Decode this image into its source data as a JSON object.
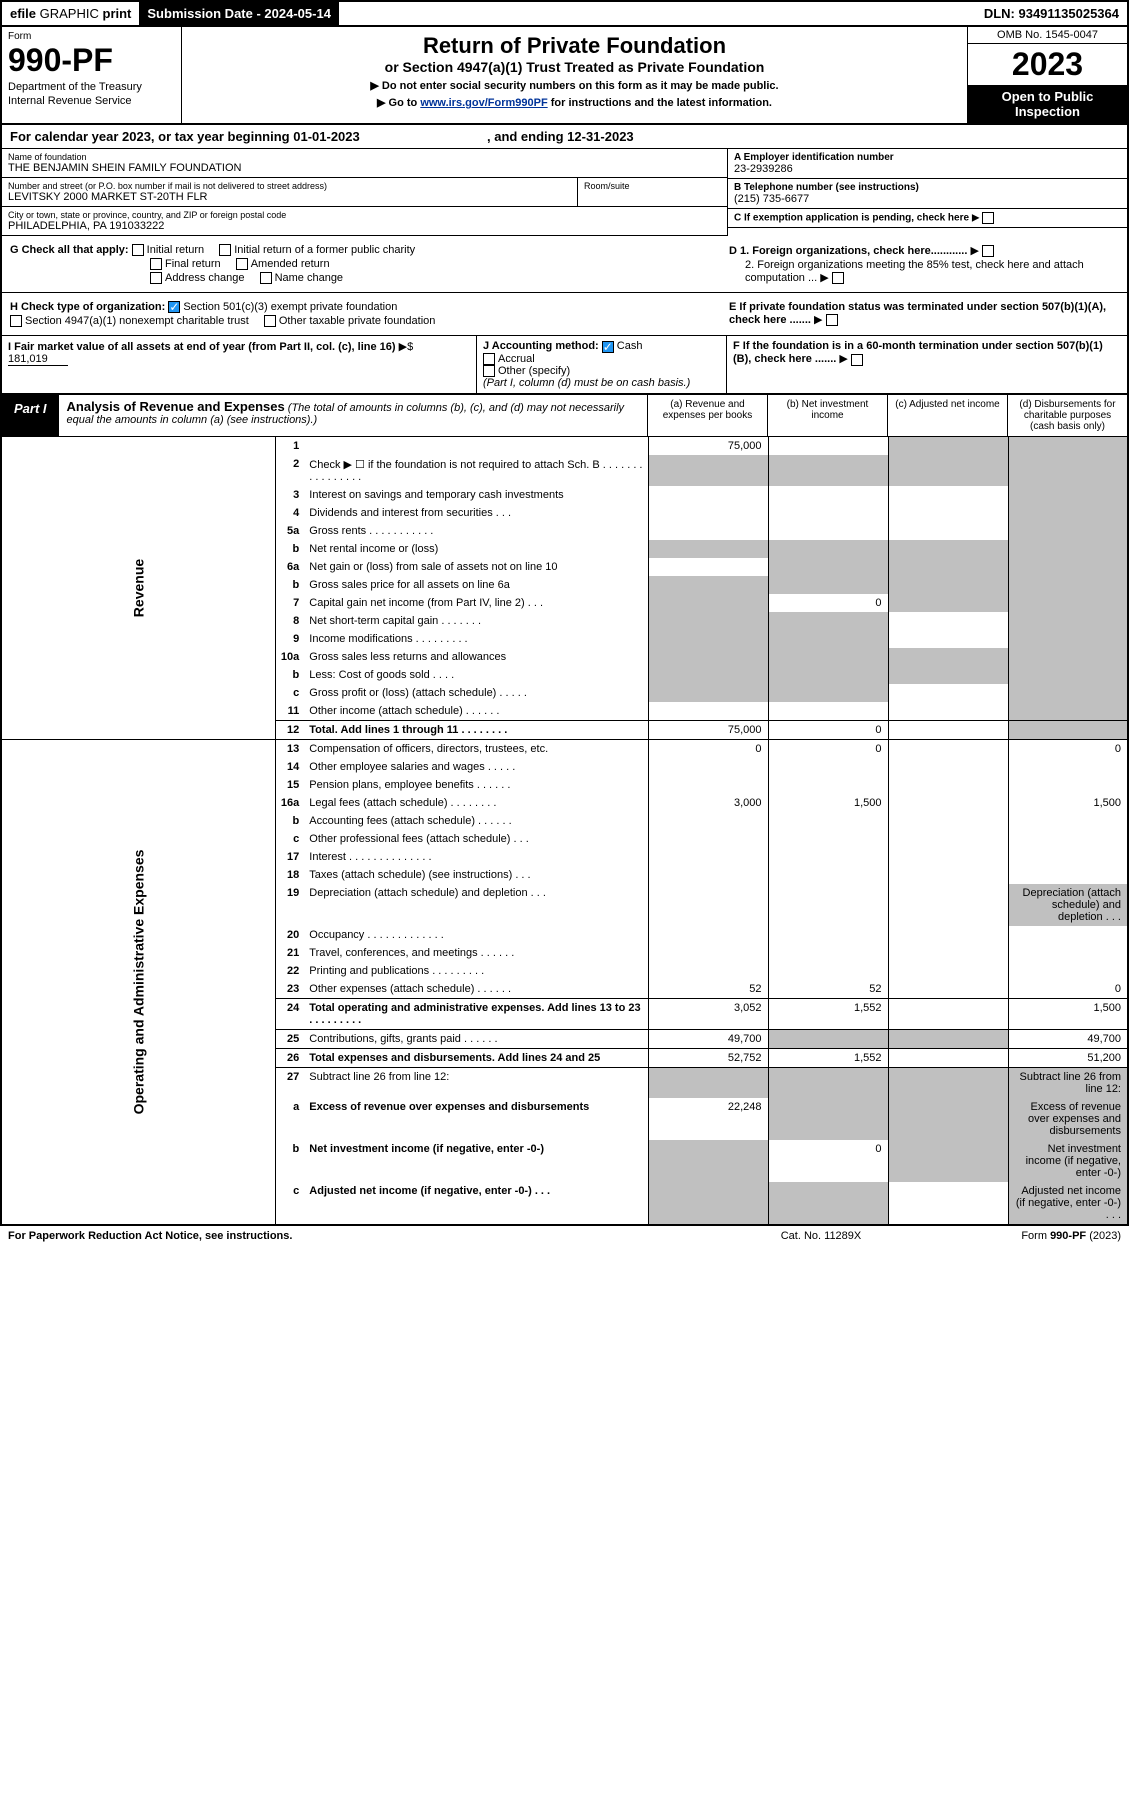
{
  "top": {
    "efile": "efile",
    "graphic": "GRAPHIC",
    "print": "print",
    "sub_label": "Submission Date - ",
    "sub_date": "2024-05-14",
    "dln_label": "DLN: ",
    "dln": "93491135025364"
  },
  "header": {
    "form_word": "Form",
    "form_num": "990-PF",
    "dept": "Department of the Treasury",
    "irs": "Internal Revenue Service",
    "title": "Return of Private Foundation",
    "subtitle": "or Section 4947(a)(1) Trust Treated as Private Foundation",
    "note1": "▶ Do not enter social security numbers on this form as it may be made public.",
    "note2_pre": "▶ Go to ",
    "note2_link": "www.irs.gov/Form990PF",
    "note2_post": " for instructions and the latest information.",
    "omb": "OMB No. 1545-0047",
    "year": "2023",
    "open": "Open to Public Inspection"
  },
  "cal": {
    "text_pre": "For calendar year 2023, or tax year beginning ",
    "begin": "01-01-2023",
    "text_mid": ", and ending ",
    "end": "12-31-2023"
  },
  "info": {
    "name_label": "Name of foundation",
    "name": "THE BENJAMIN SHEIN FAMILY FOUNDATION",
    "addr_label": "Number and street (or P.O. box number if mail is not delivered to street address)",
    "addr": "LEVITSKY 2000 MARKET ST-20TH FLR",
    "room_label": "Room/suite",
    "city_label": "City or town, state or province, country, and ZIP or foreign postal code",
    "city": "PHILADELPHIA, PA 191033222",
    "a_label": "A Employer identification number",
    "a_val": "23-2939286",
    "b_label": "B Telephone number (see instructions)",
    "b_val": "(215) 735-6677",
    "c_label": "C If exemption application is pending, check here",
    "d1": "D 1. Foreign organizations, check here............",
    "d2": "2. Foreign organizations meeting the 85% test, check here and attach computation ...",
    "e": "E If private foundation status was terminated under section 507(b)(1)(A), check here .......",
    "f": "F If the foundation is in a 60-month termination under section 507(b)(1)(B), check here .......",
    "g_label": "G Check all that apply:",
    "g_initial": "Initial return",
    "g_initial_former": "Initial return of a former public charity",
    "g_final": "Final return",
    "g_amended": "Amended return",
    "g_address": "Address change",
    "g_name": "Name change",
    "h_label": "H Check type of organization:",
    "h_501c3": "Section 501(c)(3) exempt private foundation",
    "h_4947": "Section 4947(a)(1) nonexempt charitable trust",
    "h_other": "Other taxable private foundation",
    "i_label": "I Fair market value of all assets at end of year (from Part II, col. (c), line 16)",
    "i_val": "181,019",
    "j_label": "J Accounting method:",
    "j_cash": "Cash",
    "j_accrual": "Accrual",
    "j_other": "Other (specify)",
    "j_note": "(Part I, column (d) must be on cash basis.)"
  },
  "part1": {
    "label": "Part I",
    "title": "Analysis of Revenue and Expenses",
    "title_note": "(The total of amounts in columns (b), (c), and (d) may not necessarily equal the amounts in column (a) (see instructions).)",
    "col_a": "(a) Revenue and expenses per books",
    "col_b": "(b) Net investment income",
    "col_c": "(c) Adjusted net income",
    "col_d": "(d) Disbursements for charitable purposes (cash basis only)",
    "side_rev": "Revenue",
    "side_exp": "Operating and Administrative Expenses"
  },
  "rows": [
    {
      "n": "1",
      "d": "",
      "a": "75,000",
      "b": "",
      "c": "",
      "cg": true,
      "dg": true
    },
    {
      "n": "2",
      "d": "Check ▶ ☐ if the foundation is not required to attach Sch. B   .  .  .  .  .  .  .  .  .  .  .  .  .  .  .  .",
      "ag": true,
      "bg": true,
      "cg": true,
      "dg": true
    },
    {
      "n": "3",
      "d": "Interest on savings and temporary cash investments",
      "a": "",
      "b": "",
      "c": "",
      "dg": true
    },
    {
      "n": "4",
      "d": "Dividends and interest from securities   .  .  .",
      "a": "",
      "b": "",
      "c": "",
      "dg": true
    },
    {
      "n": "5a",
      "d": "Gross rents   .  .  .  .  .  .  .  .  .  .  .",
      "a": "",
      "b": "",
      "c": "",
      "dg": true
    },
    {
      "n": "b",
      "d": "Net rental income or (loss)",
      "ag": true,
      "bg": true,
      "cg": true,
      "dg": true
    },
    {
      "n": "6a",
      "d": "Net gain or (loss) from sale of assets not on line 10",
      "a": "",
      "bg": true,
      "cg": true,
      "dg": true
    },
    {
      "n": "b",
      "d": "Gross sales price for all assets on line 6a",
      "ag": true,
      "bg": true,
      "cg": true,
      "dg": true
    },
    {
      "n": "7",
      "d": "Capital gain net income (from Part IV, line 2)   .  .  .",
      "ag": true,
      "b": "0",
      "cg": true,
      "dg": true
    },
    {
      "n": "8",
      "d": "Net short-term capital gain   .  .  .  .  .  .  .",
      "ag": true,
      "bg": true,
      "c": "",
      "dg": true
    },
    {
      "n": "9",
      "d": "Income modifications   .  .  .  .  .  .  .  .  .",
      "ag": true,
      "bg": true,
      "c": "",
      "dg": true
    },
    {
      "n": "10a",
      "d": "Gross sales less returns and allowances",
      "ag": true,
      "bg": true,
      "cg": true,
      "dg": true
    },
    {
      "n": "b",
      "d": "Less: Cost of goods sold   .  .  .  .",
      "ag": true,
      "bg": true,
      "cg": true,
      "dg": true
    },
    {
      "n": "c",
      "d": "Gross profit or (loss) (attach schedule)   .  .  .  .  .",
      "ag": true,
      "bg": true,
      "c": "",
      "dg": true
    },
    {
      "n": "11",
      "d": "Other income (attach schedule)   .  .  .  .  .  .",
      "a": "",
      "b": "",
      "c": "",
      "dg": true
    },
    {
      "n": "12",
      "d": "Total. Add lines 1 through 11   .  .  .  .  .  .  .  .",
      "a": "75,000",
      "b": "0",
      "c": "",
      "dg": true,
      "bold": true,
      "bord": true
    }
  ],
  "exp_rows": [
    {
      "n": "13",
      "d": "0",
      "a": "0",
      "b": "0",
      "c": "",
      "bord": true
    },
    {
      "n": "14",
      "d": "",
      "a": "",
      "b": "",
      "c": ""
    },
    {
      "n": "15",
      "d": "",
      "a": "",
      "b": "",
      "c": ""
    },
    {
      "n": "16a",
      "d": "1,500",
      "a": "3,000",
      "b": "1,500",
      "c": ""
    },
    {
      "n": "b",
      "d": "",
      "a": "",
      "b": "",
      "c": ""
    },
    {
      "n": "c",
      "d": "",
      "a": "",
      "b": "",
      "c": ""
    },
    {
      "n": "17",
      "d": "",
      "a": "",
      "b": "",
      "c": ""
    },
    {
      "n": "18",
      "d": "",
      "a": "",
      "b": "",
      "c": ""
    },
    {
      "n": "19",
      "d": "Depreciation (attach schedule) and depletion   .  .  .",
      "a": "",
      "b": "",
      "c": "",
      "dg": true
    },
    {
      "n": "20",
      "d": "",
      "a": "",
      "b": "",
      "c": ""
    },
    {
      "n": "21",
      "d": "",
      "a": "",
      "b": "",
      "c": ""
    },
    {
      "n": "22",
      "d": "",
      "a": "",
      "b": "",
      "c": ""
    },
    {
      "n": "23",
      "d": "0",
      "a": "52",
      "b": "52",
      "c": ""
    },
    {
      "n": "24",
      "d": "1,500",
      "a": "3,052",
      "b": "1,552",
      "c": "",
      "bold": true,
      "bord": true
    },
    {
      "n": "25",
      "d": "49,700",
      "a": "49,700",
      "bg": true,
      "cg": true,
      "bord": true
    },
    {
      "n": "26",
      "d": "51,200",
      "a": "52,752",
      "b": "1,552",
      "c": "",
      "bold": true,
      "bord": true
    },
    {
      "n": "27",
      "d": "Subtract line 26 from line 12:",
      "ag": true,
      "bg": true,
      "cg": true,
      "dg": true,
      "bord": true
    },
    {
      "n": "a",
      "d": "Excess of revenue over expenses and disbursements",
      "a": "22,248",
      "bg": true,
      "cg": true,
      "dg": true,
      "bold": true
    },
    {
      "n": "b",
      "d": "Net investment income (if negative, enter -0-)",
      "ag": true,
      "b": "0",
      "cg": true,
      "dg": true,
      "bold": true
    },
    {
      "n": "c",
      "d": "Adjusted net income (if negative, enter -0-)   .  .  .",
      "ag": true,
      "bg": true,
      "c": "",
      "dg": true,
      "bold": true
    }
  ],
  "footer": {
    "left": "For Paperwork Reduction Act Notice, see instructions.",
    "center": "Cat. No. 11289X",
    "right": "Form 990-PF (2023)"
  },
  "colors": {
    "black": "#000000",
    "white": "#ffffff",
    "grey": "#c0c0c0",
    "link": "#003399",
    "check": "#2196f3"
  }
}
